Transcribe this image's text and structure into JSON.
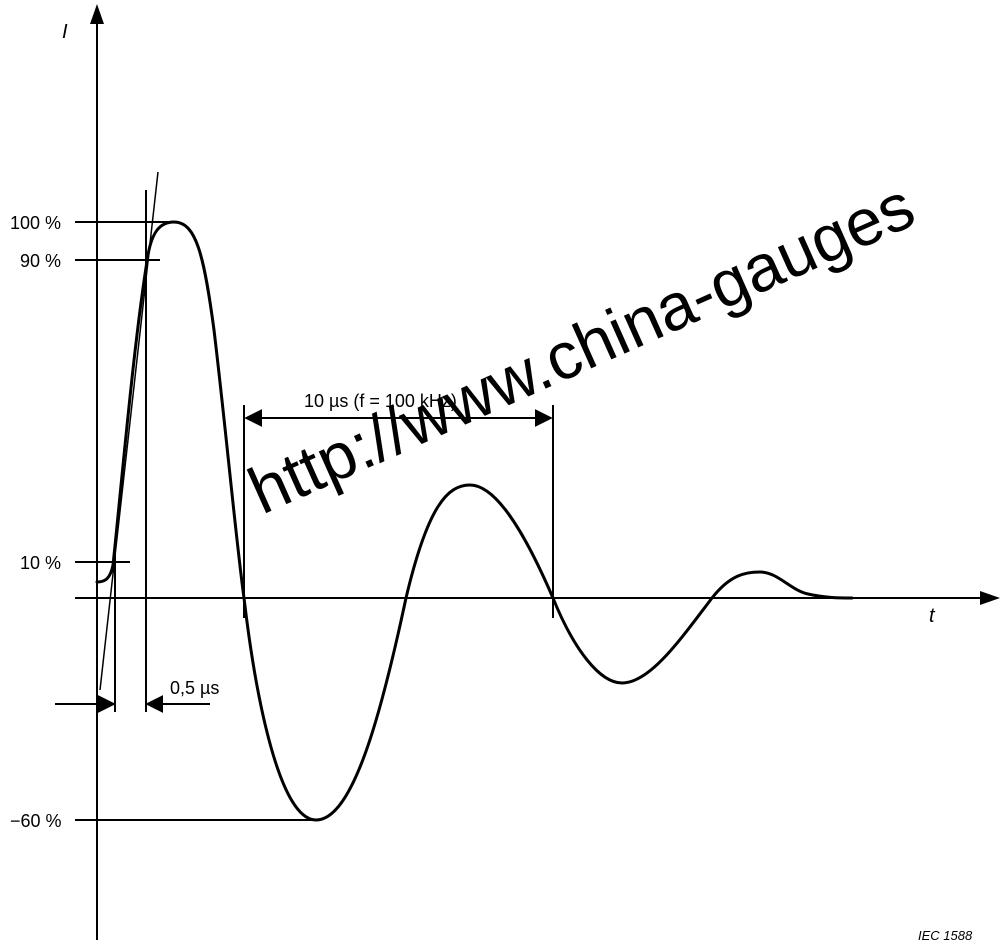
{
  "axes": {
    "y_label": "I",
    "x_label": "t"
  },
  "levels": {
    "p100": "100 %",
    "p90": "90 %",
    "p10": "10 %",
    "m60": "−60 %"
  },
  "annotations": {
    "rise_time": "0,5 µs",
    "period": "10 µs (f = 100 kHz)"
  },
  "figure_ref": "IEC   1588",
  "watermark": "http://www.china-gauges"
}
